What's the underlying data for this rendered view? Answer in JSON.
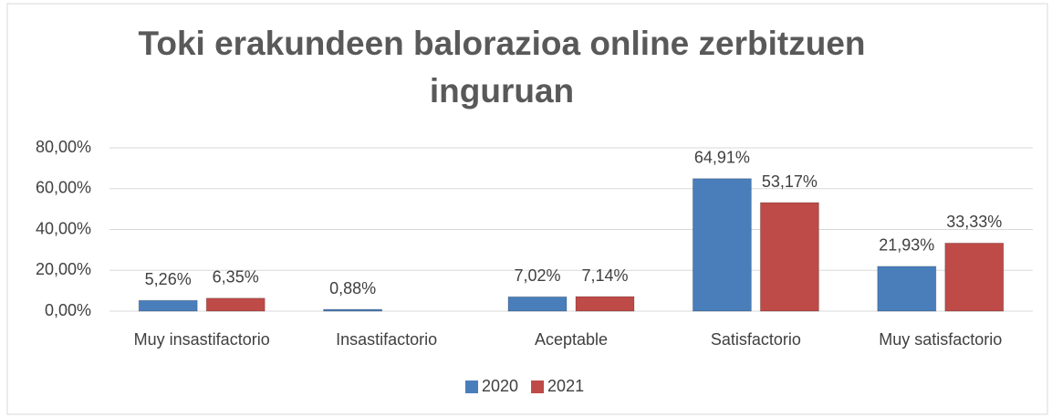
{
  "chart_data": {
    "type": "bar",
    "title": "Toki erakundeen balorazioa online zerbitzuen inguruan",
    "categories": [
      "Muy insastifactorio",
      "Insastifactorio",
      "Aceptable",
      "Satisfactorio",
      "Muy satisfactorio"
    ],
    "series": [
      {
        "name": "2020",
        "color": "#4a7ebb",
        "values": [
          5.26,
          0.88,
          7.02,
          64.91,
          21.93
        ],
        "value_labels": [
          "5,26%",
          "0,88%",
          "7,02%",
          "64,91%",
          "21,93%"
        ]
      },
      {
        "name": "2021",
        "color": "#be4b48",
        "values": [
          6.35,
          null,
          7.14,
          53.17,
          33.33
        ],
        "value_labels": [
          "6,35%",
          null,
          "7,14%",
          "53,17%",
          "33,33%"
        ]
      }
    ],
    "ylim": [
      0,
      80
    ],
    "yticks": [
      {
        "value": 0,
        "label": "0,00%"
      },
      {
        "value": 20,
        "label": "20,00%"
      },
      {
        "value": 40,
        "label": "40,00%"
      },
      {
        "value": 60,
        "label": "60,00%"
      },
      {
        "value": 80,
        "label": "80,00%"
      }
    ],
    "grid": true,
    "legend": "bottom"
  }
}
